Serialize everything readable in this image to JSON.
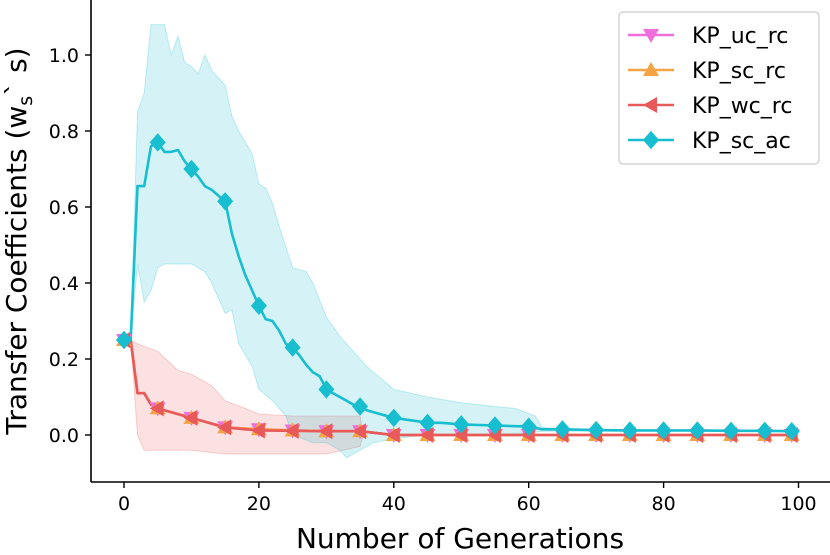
{
  "chart_data": {
    "type": "line",
    "xlabel": "Number of Generations",
    "ylabel": "Transfer Coefficients (w",
    "ylabel_sub": "s",
    "ylabel_tail": "` s)",
    "xlim": [
      -5,
      102
    ],
    "ylim": [
      -0.13,
      1.13
    ],
    "xticks": [
      0,
      20,
      40,
      60,
      80,
      100
    ],
    "xtick_labels": [
      "0",
      "20",
      "40",
      "60",
      "80",
      "100"
    ],
    "yticks": [
      0.0,
      0.2,
      0.4,
      0.6,
      0.8,
      1.0
    ],
    "ytick_labels": [
      "0.0",
      "0.2",
      "0.4",
      "0.6",
      "0.8",
      "1.0"
    ],
    "legend_position": "top-right",
    "series": [
      {
        "name": "KP_uc_rc",
        "color": "#ee6fdc",
        "marker": "triangle-down",
        "x": [
          0,
          1,
          2,
          3,
          4,
          5,
          10,
          15,
          20,
          25,
          30,
          35,
          40,
          45,
          50,
          55,
          60,
          65,
          70,
          75,
          80,
          85,
          90,
          95,
          99
        ],
        "y": [
          0.25,
          0.25,
          0.11,
          0.11,
          0.08,
          0.07,
          0.045,
          0.02,
          0.015,
          0.012,
          0.01,
          0.01,
          0.0,
          0.0,
          0.0,
          0.0,
          0.0,
          0.0,
          0.0,
          0.0,
          0.0,
          0.0,
          0.0,
          0.0,
          0.0
        ],
        "markers_x": [
          0,
          5,
          10,
          15,
          20,
          25,
          30,
          35,
          40,
          45,
          50,
          55,
          60,
          65,
          70,
          75,
          80,
          85,
          90,
          95,
          99
        ]
      },
      {
        "name": "KP_sc_rc",
        "color": "#f5a443",
        "marker": "triangle-up",
        "x": [
          0,
          1,
          2,
          3,
          4,
          5,
          10,
          15,
          20,
          25,
          30,
          35,
          40,
          45,
          50,
          55,
          60,
          65,
          70,
          75,
          80,
          85,
          90,
          95,
          99
        ],
        "y": [
          0.25,
          0.25,
          0.11,
          0.11,
          0.08,
          0.07,
          0.045,
          0.02,
          0.015,
          0.012,
          0.01,
          0.01,
          0.0,
          0.0,
          0.0,
          0.0,
          0.0,
          0.0,
          0.0,
          0.0,
          0.0,
          0.0,
          0.0,
          0.0,
          0.0
        ],
        "markers_x": [
          0,
          5,
          10,
          15,
          20,
          25,
          30,
          35,
          40,
          45,
          50,
          55,
          60,
          65,
          70,
          75,
          80,
          85,
          90,
          95,
          99
        ]
      },
      {
        "name": "KP_wc_rc",
        "color": "#e85a5a",
        "marker": "triangle-left",
        "x": [
          0,
          1,
          2,
          3,
          4,
          5,
          7,
          10,
          13,
          15,
          18,
          20,
          25,
          30,
          35,
          40,
          45,
          50,
          55,
          60,
          65,
          70,
          75,
          80,
          85,
          90,
          95,
          99
        ],
        "y": [
          0.25,
          0.25,
          0.11,
          0.11,
          0.08,
          0.07,
          0.06,
          0.045,
          0.03,
          0.02,
          0.015,
          0.012,
          0.011,
          0.01,
          0.01,
          0.0,
          0.0,
          0.0,
          0.0,
          0.0,
          0.0,
          0.0,
          0.0,
          0.0,
          0.0,
          0.0,
          0.0,
          0.0
        ],
        "markers_x": [
          0,
          5,
          10,
          15,
          20,
          25,
          30,
          35,
          40,
          45,
          50,
          55,
          60,
          65,
          70,
          75,
          80,
          85,
          90,
          95,
          99
        ],
        "band_upper": [
          [
            0,
            0.25
          ],
          [
            1,
            0.25
          ],
          [
            2,
            0.24
          ],
          [
            5,
            0.22
          ],
          [
            8,
            0.17
          ],
          [
            10,
            0.16
          ],
          [
            13,
            0.13
          ],
          [
            15,
            0.09
          ],
          [
            18,
            0.07
          ],
          [
            20,
            0.055
          ],
          [
            25,
            0.05
          ],
          [
            30,
            0.05
          ],
          [
            35,
            0.05
          ],
          [
            35.5,
            0.0
          ]
        ],
        "band_lower": [
          [
            0,
            0.25
          ],
          [
            1,
            0.25
          ],
          [
            2,
            0.0
          ],
          [
            3,
            -0.04
          ],
          [
            5,
            -0.04
          ],
          [
            8,
            -0.04
          ],
          [
            10,
            -0.04
          ],
          [
            15,
            -0.05
          ],
          [
            20,
            -0.05
          ],
          [
            25,
            -0.05
          ],
          [
            30,
            -0.05
          ],
          [
            35,
            -0.03
          ],
          [
            35.5,
            0.0
          ]
        ]
      },
      {
        "name": "KP_sc_ac",
        "color": "#17becf",
        "marker": "diamond",
        "x": [
          0,
          1,
          2,
          3,
          4,
          5,
          6,
          7,
          8,
          9,
          10,
          11,
          12,
          13,
          14,
          15,
          16,
          17,
          18,
          19,
          20,
          21,
          22,
          23,
          24,
          25,
          26,
          27,
          28,
          29,
          30,
          31,
          32,
          33,
          34,
          35,
          36,
          37,
          38,
          39,
          40,
          42,
          44,
          45,
          47,
          50,
          55,
          60,
          62,
          65,
          70,
          75,
          80,
          85,
          90,
          95,
          99
        ],
        "y": [
          0.25,
          0.25,
          0.655,
          0.655,
          0.76,
          0.77,
          0.745,
          0.745,
          0.75,
          0.72,
          0.7,
          0.68,
          0.655,
          0.645,
          0.63,
          0.615,
          0.53,
          0.47,
          0.42,
          0.38,
          0.34,
          0.305,
          0.3,
          0.275,
          0.24,
          0.23,
          0.21,
          0.185,
          0.165,
          0.155,
          0.12,
          0.11,
          0.1,
          0.09,
          0.08,
          0.075,
          0.065,
          0.06,
          0.055,
          0.05,
          0.045,
          0.04,
          0.035,
          0.032,
          0.032,
          0.028,
          0.025,
          0.022,
          0.015,
          0.015,
          0.013,
          0.012,
          0.012,
          0.012,
          0.011,
          0.011,
          0.01
        ],
        "markers_x": [
          0,
          5,
          10,
          15,
          20,
          25,
          30,
          35,
          40,
          45,
          50,
          55,
          60,
          65,
          70,
          75,
          80,
          85,
          90,
          95,
          99
        ],
        "band_upper": [
          [
            0,
            0.25
          ],
          [
            1,
            0.25
          ],
          [
            2,
            0.85
          ],
          [
            3,
            0.9
          ],
          [
            4,
            1.08
          ],
          [
            6,
            1.08
          ],
          [
            7,
            1.0
          ],
          [
            8,
            1.05
          ],
          [
            9,
            0.98
          ],
          [
            10,
            0.97
          ],
          [
            11,
            0.95
          ],
          [
            12,
            1.0
          ],
          [
            13,
            0.96
          ],
          [
            15,
            0.92
          ],
          [
            16,
            0.84
          ],
          [
            17,
            0.8
          ],
          [
            19,
            0.74
          ],
          [
            20,
            0.66
          ],
          [
            21,
            0.65
          ],
          [
            22,
            0.61
          ],
          [
            23,
            0.55
          ],
          [
            25,
            0.44
          ],
          [
            27,
            0.43
          ],
          [
            28,
            0.4
          ],
          [
            30,
            0.31
          ],
          [
            32,
            0.26
          ],
          [
            34,
            0.22
          ],
          [
            36,
            0.18
          ],
          [
            38,
            0.15
          ],
          [
            40,
            0.12
          ],
          [
            45,
            0.1
          ],
          [
            50,
            0.085
          ],
          [
            55,
            0.075
          ],
          [
            58,
            0.07
          ],
          [
            61,
            0.05
          ],
          [
            62,
            0.02
          ],
          [
            65,
            0.015
          ],
          [
            99,
            0.012
          ]
        ],
        "band_lower": [
          [
            99,
            0.01
          ],
          [
            65,
            0.01
          ],
          [
            62,
            0.01
          ],
          [
            60,
            0.005
          ],
          [
            50,
            0.0
          ],
          [
            45,
            0.0
          ],
          [
            40,
            -0.01
          ],
          [
            37,
            -0.02
          ],
          [
            35,
            -0.04
          ],
          [
            33,
            -0.06
          ],
          [
            32,
            -0.04
          ],
          [
            30,
            -0.02
          ],
          [
            28,
            -0.02
          ],
          [
            25,
            0.0
          ],
          [
            24,
            0.05
          ],
          [
            22,
            0.09
          ],
          [
            20,
            0.12
          ],
          [
            19,
            0.18
          ],
          [
            17,
            0.24
          ],
          [
            16,
            0.33
          ],
          [
            15,
            0.32
          ],
          [
            13,
            0.4
          ],
          [
            12,
            0.43
          ],
          [
            10,
            0.45
          ],
          [
            8,
            0.45
          ],
          [
            6,
            0.45
          ],
          [
            5,
            0.44
          ],
          [
            4,
            0.38
          ],
          [
            3,
            0.35
          ],
          [
            2,
            0.45
          ],
          [
            1,
            0.25
          ],
          [
            0,
            0.25
          ]
        ]
      }
    ]
  }
}
